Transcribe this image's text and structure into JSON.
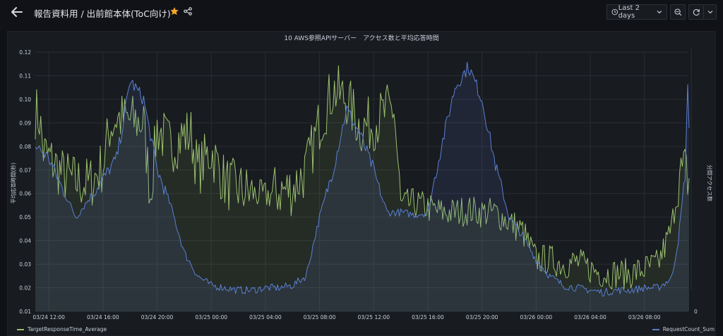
{
  "header": {
    "title": "報告資料用 / 出前館本体(ToC向け)",
    "time_range_label": "Last 2 days"
  },
  "colors": {
    "background": "#111217",
    "panel": "#181b1f",
    "accent_star": "#f5a623",
    "series_average": "#9ac06f",
    "series_count": "#5b7fd4"
  },
  "icons": {
    "back": "arrow-left-icon",
    "star": "star-icon",
    "share": "share-icon",
    "clock": "clock-icon",
    "zoom": "zoom-out-icon",
    "refresh": "refresh-icon",
    "dropdown": "chevron-down-icon"
  },
  "panel": {
    "title": "10 AWS参照APIサーバー　アクセス数と平均応答時間",
    "ylabel_left": "平均応答時間(秒)",
    "ylabel_right": "分間アクセス数",
    "legend": [
      {
        "name": "TargetResponseTime_Average",
        "color": "#9ac06f"
      },
      {
        "name": "RequestCount_Sum",
        "color": "#5b7fd4"
      }
    ]
  },
  "chart_data": {
    "type": "line",
    "x_labels": [
      "03/24 12:00",
      "03/24 16:00",
      "03/24 20:00",
      "03/25 00:00",
      "03/25 04:00",
      "03/25 08:00",
      "03/25 12:00",
      "03/25 16:00",
      "03/25 20:00",
      "03/26 00:00",
      "03/26 04:00",
      "03/26 08:00"
    ],
    "x_range": [
      "03/24 11:00",
      "03/26 11:15"
    ],
    "y_left_ticks": [
      "0.01",
      "0.02",
      "0.03",
      "0.04",
      "0.05",
      "0.06",
      "0.07",
      "0.08",
      "0.09",
      "0.10",
      "0.11",
      "0.12"
    ],
    "ylim_left": [
      0.01,
      0.12
    ],
    "y_right_ticks": [
      "0"
    ],
    "grid": true,
    "legend_position": "bottom",
    "series": [
      {
        "name": "TargetResponseTime_Average",
        "axis": "left",
        "color": "#9ac06f",
        "hours": [
          0,
          0.3,
          0.6,
          1,
          1.5,
          2,
          3,
          4,
          5,
          5.5,
          6,
          7,
          8,
          8.5,
          9,
          10,
          11,
          11.5,
          12,
          13,
          14,
          15,
          16,
          17,
          18,
          19,
          20,
          21,
          22,
          23,
          24,
          25,
          26,
          26.5,
          27,
          28,
          29,
          30,
          31,
          32,
          33,
          34,
          35,
          36,
          36.5,
          37,
          38,
          39,
          40,
          41,
          42,
          43,
          44,
          45,
          46,
          47,
          47.5,
          48,
          48.3
        ],
        "values": [
          0.095,
          0.092,
          0.078,
          0.075,
          0.072,
          0.068,
          0.065,
          0.064,
          0.072,
          0.088,
          0.092,
          0.091,
          0.09,
          0.06,
          0.088,
          0.08,
          0.085,
          0.085,
          0.07,
          0.078,
          0.065,
          0.062,
          0.06,
          0.059,
          0.061,
          0.062,
          0.07,
          0.09,
          0.104,
          0.1,
          0.088,
          0.09,
          0.095,
          0.096,
          0.055,
          0.056,
          0.054,
          0.052,
          0.052,
          0.053,
          0.052,
          0.052,
          0.048,
          0.044,
          0.038,
          0.032,
          0.032,
          0.03,
          0.031,
          0.028,
          0.026,
          0.026,
          0.026,
          0.028,
          0.03,
          0.045,
          0.066,
          0.07,
          0.065
        ]
      },
      {
        "name": "RequestCount_Sum",
        "axis": "right",
        "color": "#5b7fd4",
        "hours": [
          0,
          0.5,
          1,
          2,
          3,
          4,
          5,
          6,
          6.5,
          7,
          8,
          9,
          10,
          11,
          12,
          13,
          14,
          15,
          16,
          17,
          18,
          19,
          20,
          21,
          22,
          23,
          24,
          25,
          25.5,
          26,
          27,
          28,
          29,
          30,
          31,
          32,
          33,
          34,
          35,
          36,
          37,
          38,
          39,
          40,
          41,
          42,
          43,
          44,
          45,
          46,
          47,
          47.5,
          48,
          48.2,
          48.3
        ],
        "values": [
          0.08,
          0.078,
          0.075,
          0.062,
          0.05,
          0.058,
          0.066,
          0.075,
          0.09,
          0.108,
          0.1,
          0.07,
          0.055,
          0.035,
          0.025,
          0.021,
          0.02,
          0.019,
          0.019,
          0.02,
          0.02,
          0.021,
          0.025,
          0.05,
          0.07,
          0.096,
          0.085,
          0.07,
          0.06,
          0.052,
          0.052,
          0.051,
          0.052,
          0.08,
          0.105,
          0.114,
          0.1,
          0.072,
          0.05,
          0.042,
          0.032,
          0.025,
          0.021,
          0.02,
          0.019,
          0.018,
          0.019,
          0.019,
          0.02,
          0.02,
          0.024,
          0.04,
          0.068,
          0.104,
          0.09
        ]
      }
    ]
  }
}
